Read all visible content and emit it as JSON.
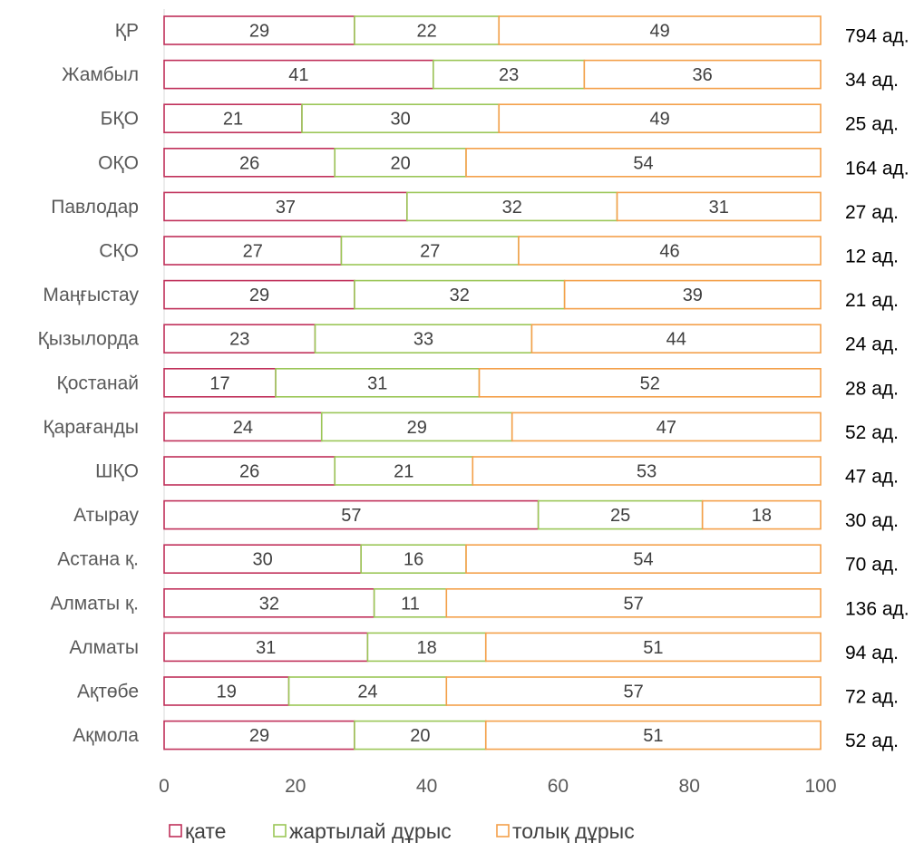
{
  "chart_data": {
    "type": "bar",
    "orientation": "horizontal",
    "stacked": true,
    "categories": [
      "ҚР",
      "Жамбыл",
      "БҚО",
      "ОҚО",
      "Павлодар",
      "СҚО",
      "Маңғыстау",
      "Қызылорда",
      "Қостанай",
      "Қарағанды",
      "ШҚО",
      "Атырау",
      "Астана қ.",
      "Алматы қ.",
      "Алматы",
      "Ақтөбе",
      "Ақмола"
    ],
    "series": [
      {
        "name": "қате",
        "color": "#c0305a",
        "values": [
          29,
          41,
          21,
          26,
          37,
          27,
          29,
          23,
          17,
          24,
          26,
          57,
          30,
          32,
          31,
          19,
          29
        ]
      },
      {
        "name": "жартылай дұрыс",
        "color": "#9bc657",
        "values": [
          22,
          23,
          30,
          20,
          32,
          27,
          32,
          33,
          31,
          29,
          21,
          25,
          16,
          11,
          18,
          24,
          20
        ]
      },
      {
        "name": "толық дұрыс",
        "color": "#f4a04a",
        "values": [
          49,
          36,
          49,
          54,
          31,
          46,
          39,
          44,
          52,
          47,
          53,
          18,
          54,
          57,
          51,
          57,
          51
        ]
      }
    ],
    "counts": [
      "794 ад.",
      "34 ад.",
      "25 ад.",
      "164 ад.",
      "27 ад.",
      "12 ад.",
      "21 ад.",
      "24 ад.",
      "28 ад.",
      "52 ад.",
      "47 ад.",
      "30 ад.",
      "70 ад.",
      "136 ад.",
      "94 ад.",
      "72 ад.",
      "52 ад."
    ],
    "xlim": [
      0,
      100
    ],
    "xticks": [
      "0",
      "20",
      "40",
      "60",
      "80",
      "100"
    ],
    "grid": false,
    "legend_position": "bottom"
  }
}
